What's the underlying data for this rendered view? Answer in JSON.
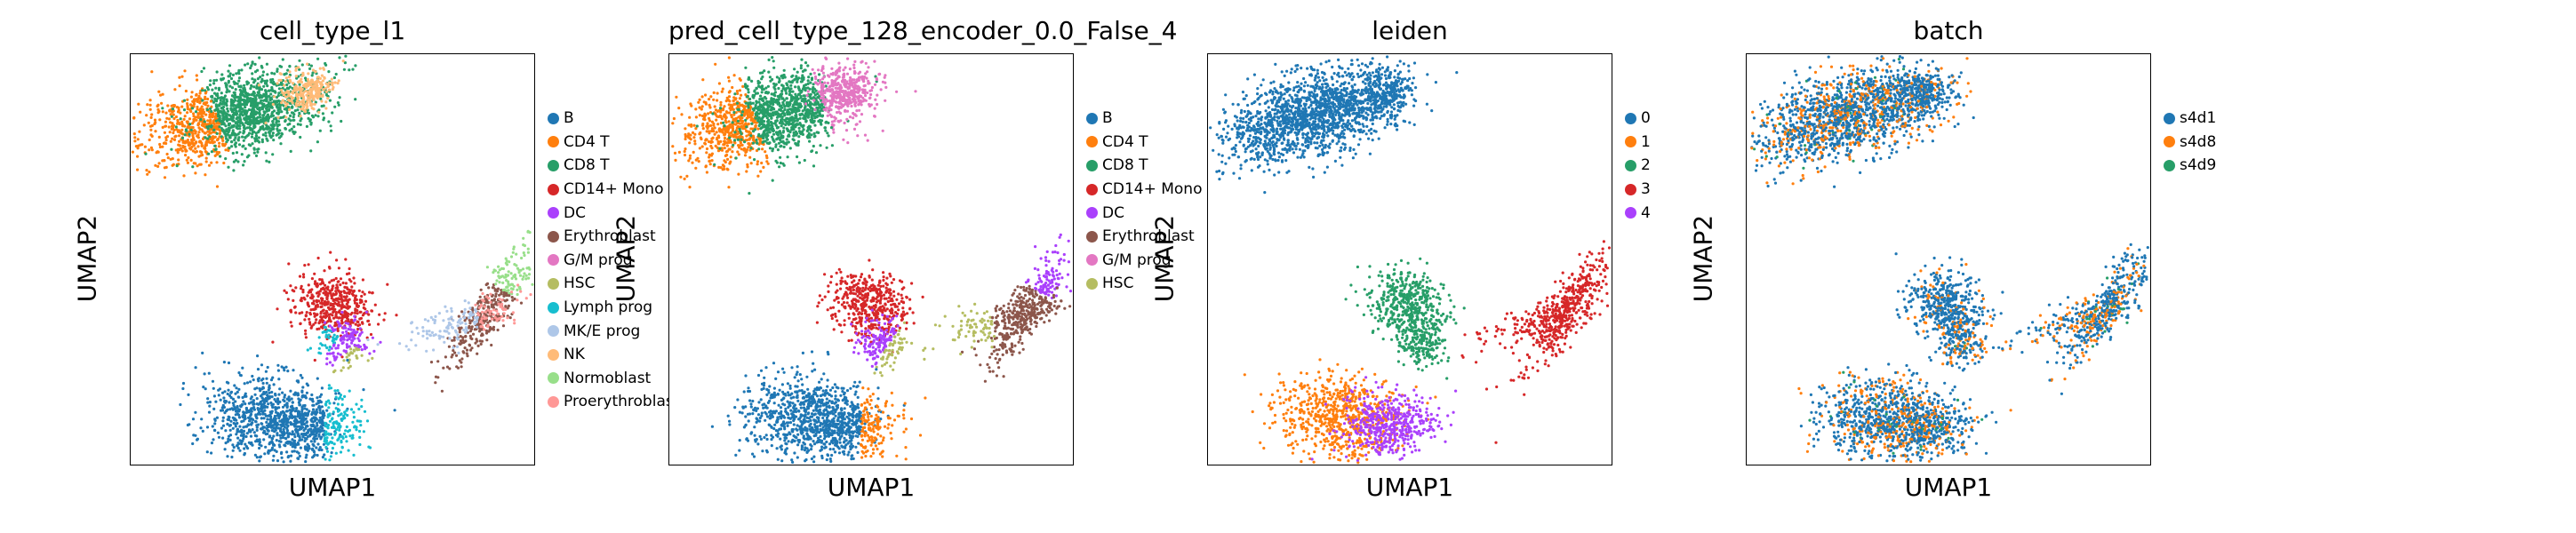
{
  "chart_data": [
    {
      "type": "scatter",
      "title": "cell_type_l1",
      "xlabel": "UMAP1",
      "ylabel": "UMAP2",
      "legend_position": "right",
      "grid": false,
      "legend": [
        {
          "name": "B",
          "color": "#1f77b4"
        },
        {
          "name": "CD4 T",
          "color": "#ff7f0e"
        },
        {
          "name": "CD8 T",
          "color": "#279e68"
        },
        {
          "name": "CD14+ Mono",
          "color": "#d62728"
        },
        {
          "name": "DC",
          "color": "#aa40fc"
        },
        {
          "name": "Erythroblast",
          "color": "#8c564b"
        },
        {
          "name": "G/M prog",
          "color": "#e377c2"
        },
        {
          "name": "HSC",
          "color": "#b5bd61"
        },
        {
          "name": "Lymph prog",
          "color": "#17becf"
        },
        {
          "name": "MK/E prog",
          "color": "#aec7e8"
        },
        {
          "name": "NK",
          "color": "#ffbb78"
        },
        {
          "name": "Normoblast",
          "color": "#98df8a"
        },
        {
          "name": "Proerythroblast",
          "color": "#ff9896"
        }
      ]
    },
    {
      "type": "scatter",
      "title": "pred_cell_type_128_encoder_0.0_False_4",
      "xlabel": "UMAP1",
      "ylabel": "UMAP2",
      "legend_position": "right",
      "grid": false,
      "legend": [
        {
          "name": "B",
          "color": "#1f77b4"
        },
        {
          "name": "CD4 T",
          "color": "#ff7f0e"
        },
        {
          "name": "CD8 T",
          "color": "#279e68"
        },
        {
          "name": "CD14+ Mono",
          "color": "#d62728"
        },
        {
          "name": "DC",
          "color": "#aa40fc"
        },
        {
          "name": "Erythroblast",
          "color": "#8c564b"
        },
        {
          "name": "G/M prog",
          "color": "#e377c2"
        },
        {
          "name": "HSC",
          "color": "#b5bd61"
        }
      ]
    },
    {
      "type": "scatter",
      "title": "leiden",
      "xlabel": "UMAP1",
      "ylabel": "UMAP2",
      "legend_position": "right",
      "grid": false,
      "legend": [
        {
          "name": "0",
          "color": "#1f77b4"
        },
        {
          "name": "1",
          "color": "#ff7f0e"
        },
        {
          "name": "2",
          "color": "#279e68"
        },
        {
          "name": "3",
          "color": "#d62728"
        },
        {
          "name": "4",
          "color": "#aa40fc"
        }
      ]
    },
    {
      "type": "scatter",
      "title": "batch",
      "xlabel": "UMAP1",
      "ylabel": "UMAP2",
      "legend_position": "right",
      "grid": false,
      "legend": [
        {
          "name": "s4d1",
          "color": "#1f77b4"
        },
        {
          "name": "s4d8",
          "color": "#ff7f0e"
        },
        {
          "name": "s4d9",
          "color": "#279e68"
        }
      ]
    }
  ]
}
